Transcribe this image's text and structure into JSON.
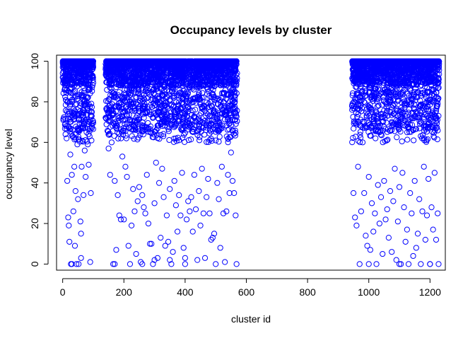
{
  "chart_data": {
    "type": "scatter",
    "title": "Occupancy levels by cluster",
    "xlabel": "cluster id",
    "ylabel": "occupancy level",
    "xlim": [
      -20,
      1250
    ],
    "ylim": [
      -3,
      103
    ],
    "x_ticks": [
      0,
      200,
      400,
      600,
      800,
      1000,
      1200
    ],
    "y_ticks": [
      0,
      20,
      40,
      60,
      80,
      100
    ],
    "grid": false,
    "legend": "none",
    "marker": "open-circle",
    "point_color": "#0000ff",
    "seed": 20240117,
    "cluster_ranges": [
      [
        0,
        100
      ],
      [
        140,
        570
      ],
      [
        945,
        1230
      ]
    ],
    "notes_visible": "",
    "series": [
      {
        "name": "",
        "points": [
          [
            3,
            97
          ],
          [
            5,
            91
          ],
          [
            8,
            86
          ],
          [
            12,
            68
          ],
          [
            15,
            41
          ],
          [
            18,
            23
          ],
          [
            20,
            19
          ],
          [
            22,
            11
          ],
          [
            25,
            54
          ],
          [
            27,
            0
          ],
          [
            30,
            44
          ],
          [
            32,
            63
          ],
          [
            35,
            26
          ],
          [
            38,
            48
          ],
          [
            40,
            9
          ],
          [
            42,
            36
          ],
          [
            45,
            74
          ],
          [
            48,
            59
          ],
          [
            50,
            32
          ],
          [
            52,
            0
          ],
          [
            55,
            66
          ],
          [
            58,
            21
          ],
          [
            60,
            15
          ],
          [
            62,
            48
          ],
          [
            65,
            68
          ],
          [
            68,
            34
          ],
          [
            70,
            80
          ],
          [
            72,
            56
          ],
          [
            75,
            43
          ],
          [
            78,
            65
          ],
          [
            80,
            82
          ],
          [
            82,
            59
          ],
          [
            85,
            49
          ],
          [
            88,
            63
          ],
          [
            90,
            1
          ],
          [
            92,
            35
          ],
          [
            95,
            73
          ],
          [
            60,
            3
          ],
          [
            45,
            0
          ],
          [
            30,
            0
          ],
          [
            150,
            57
          ],
          [
            155,
            44
          ],
          [
            160,
            60
          ],
          [
            165,
            0
          ],
          [
            170,
            41
          ],
          [
            175,
            7
          ],
          [
            180,
            34
          ],
          [
            185,
            24
          ],
          [
            190,
            22
          ],
          [
            195,
            53
          ],
          [
            200,
            22
          ],
          [
            205,
            48
          ],
          [
            210,
            43
          ],
          [
            215,
            9
          ],
          [
            220,
            0
          ],
          [
            225,
            19
          ],
          [
            230,
            37
          ],
          [
            235,
            26
          ],
          [
            240,
            5
          ],
          [
            245,
            31
          ],
          [
            250,
            38
          ],
          [
            255,
            1
          ],
          [
            260,
            34
          ],
          [
            265,
            28
          ],
          [
            270,
            25
          ],
          [
            275,
            44
          ],
          [
            280,
            20
          ],
          [
            285,
            10
          ],
          [
            290,
            10
          ],
          [
            295,
            0
          ],
          [
            300,
            30
          ],
          [
            305,
            50
          ],
          [
            310,
            3
          ],
          [
            315,
            40
          ],
          [
            320,
            13
          ],
          [
            325,
            47
          ],
          [
            330,
            33
          ],
          [
            335,
            9
          ],
          [
            340,
            24
          ],
          [
            345,
            11
          ],
          [
            350,
            37
          ],
          [
            355,
            0
          ],
          [
            360,
            6
          ],
          [
            365,
            41
          ],
          [
            370,
            29
          ],
          [
            375,
            16
          ],
          [
            380,
            34
          ],
          [
            385,
            24
          ],
          [
            390,
            45
          ],
          [
            395,
            8
          ],
          [
            400,
            0
          ],
          [
            405,
            22
          ],
          [
            410,
            31
          ],
          [
            415,
            26
          ],
          [
            420,
            33
          ],
          [
            425,
            16
          ],
          [
            430,
            44
          ],
          [
            435,
            27
          ],
          [
            440,
            2
          ],
          [
            445,
            36
          ],
          [
            450,
            19
          ],
          [
            455,
            47
          ],
          [
            460,
            25
          ],
          [
            465,
            3
          ],
          [
            470,
            33
          ],
          [
            475,
            42
          ],
          [
            480,
            25
          ],
          [
            485,
            12
          ],
          [
            490,
            13
          ],
          [
            495,
            15
          ],
          [
            500,
            0
          ],
          [
            505,
            40
          ],
          [
            510,
            32
          ],
          [
            515,
            8
          ],
          [
            520,
            48
          ],
          [
            525,
            25
          ],
          [
            530,
            1
          ],
          [
            535,
            26
          ],
          [
            540,
            44
          ],
          [
            545,
            35
          ],
          [
            550,
            55
          ],
          [
            555,
            41
          ],
          [
            560,
            35
          ],
          [
            565,
            24
          ],
          [
            568,
            0
          ],
          [
            170,
            0
          ],
          [
            260,
            0
          ],
          [
            400,
            3
          ],
          [
            350,
            2
          ],
          [
            300,
            2
          ],
          [
            950,
            35
          ],
          [
            955,
            23
          ],
          [
            960,
            19
          ],
          [
            965,
            48
          ],
          [
            970,
            0
          ],
          [
            975,
            26
          ],
          [
            980,
            60
          ],
          [
            985,
            35
          ],
          [
            990,
            14
          ],
          [
            995,
            9
          ],
          [
            1000,
            43
          ],
          [
            1005,
            7
          ],
          [
            1010,
            30
          ],
          [
            1015,
            16
          ],
          [
            1020,
            25
          ],
          [
            1025,
            0
          ],
          [
            1030,
            39
          ],
          [
            1035,
            20
          ],
          [
            1040,
            33
          ],
          [
            1045,
            5
          ],
          [
            1050,
            41
          ],
          [
            1055,
            22
          ],
          [
            1060,
            27
          ],
          [
            1065,
            13
          ],
          [
            1070,
            36
          ],
          [
            1075,
            6
          ],
          [
            1080,
            31
          ],
          [
            1085,
            47
          ],
          [
            1090,
            2
          ],
          [
            1095,
            21
          ],
          [
            1100,
            38
          ],
          [
            1105,
            0
          ],
          [
            1110,
            45
          ],
          [
            1115,
            28
          ],
          [
            1120,
            11
          ],
          [
            1125,
            17
          ],
          [
            1130,
            0
          ],
          [
            1135,
            35
          ],
          [
            1140,
            25
          ],
          [
            1145,
            4
          ],
          [
            1150,
            41
          ],
          [
            1155,
            8
          ],
          [
            1160,
            15
          ],
          [
            1165,
            32
          ],
          [
            1170,
            0
          ],
          [
            1175,
            26
          ],
          [
            1180,
            48
          ],
          [
            1185,
            12
          ],
          [
            1190,
            24
          ],
          [
            1195,
            42
          ],
          [
            1200,
            0
          ],
          [
            1205,
            28
          ],
          [
            1210,
            17
          ],
          [
            1215,
            45
          ],
          [
            1220,
            12
          ],
          [
            1225,
            25
          ],
          [
            1228,
            0
          ],
          [
            1000,
            0
          ],
          [
            1100,
            0
          ],
          [
            1200,
            0
          ]
        ]
      }
    ]
  }
}
